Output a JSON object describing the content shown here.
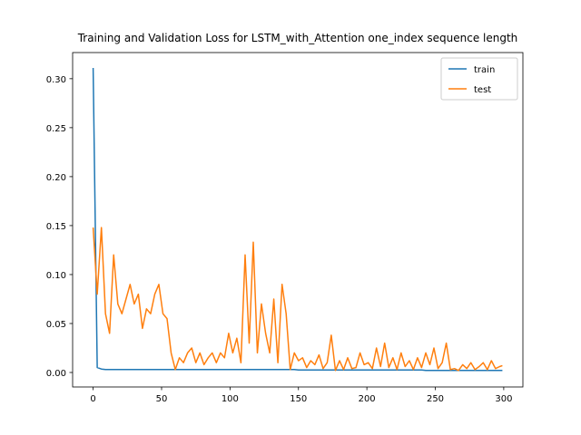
{
  "chart_data": {
    "type": "line",
    "title": "Training and Validation Loss for LSTM_with_Attention one_index sequence length",
    "x": [
      0,
      3,
      6,
      9,
      12,
      15,
      18,
      21,
      24,
      27,
      30,
      33,
      36,
      39,
      42,
      45,
      48,
      51,
      54,
      57,
      60,
      63,
      66,
      69,
      72,
      75,
      78,
      81,
      84,
      87,
      90,
      93,
      96,
      99,
      102,
      105,
      108,
      111,
      114,
      117,
      120,
      123,
      126,
      129,
      132,
      135,
      138,
      141,
      144,
      147,
      150,
      153,
      156,
      159,
      162,
      165,
      168,
      171,
      174,
      177,
      180,
      183,
      186,
      189,
      192,
      195,
      198,
      201,
      204,
      207,
      210,
      213,
      216,
      219,
      222,
      225,
      228,
      231,
      234,
      237,
      240,
      243,
      246,
      249,
      252,
      255,
      258,
      261,
      264,
      267,
      270,
      273,
      276,
      279,
      282,
      285,
      288,
      291,
      294,
      297,
      299
    ],
    "series": [
      {
        "name": "train",
        "color": "#1f77b4",
        "values": [
          0.311,
          0.005,
          0.0035,
          0.003,
          0.003,
          0.003,
          0.003,
          0.003,
          0.003,
          0.003,
          0.003,
          0.003,
          0.003,
          0.003,
          0.003,
          0.003,
          0.003,
          0.003,
          0.003,
          0.003,
          0.003,
          0.003,
          0.003,
          0.003,
          0.003,
          0.003,
          0.003,
          0.003,
          0.003,
          0.003,
          0.003,
          0.003,
          0.003,
          0.003,
          0.003,
          0.003,
          0.003,
          0.003,
          0.003,
          0.003,
          0.003,
          0.003,
          0.003,
          0.003,
          0.003,
          0.003,
          0.003,
          0.003,
          0.003,
          0.003,
          0.0025,
          0.0025,
          0.0025,
          0.0025,
          0.0025,
          0.0025,
          0.0025,
          0.0025,
          0.0025,
          0.0025,
          0.0025,
          0.0025,
          0.0025,
          0.0025,
          0.0025,
          0.0025,
          0.0025,
          0.0025,
          0.0025,
          0.0025,
          0.0025,
          0.0025,
          0.0025,
          0.0025,
          0.0025,
          0.0025,
          0.0025,
          0.0025,
          0.0025,
          0.0025,
          0.0025,
          0.002,
          0.002,
          0.002,
          0.002,
          0.002,
          0.002,
          0.002,
          0.002,
          0.002,
          0.002,
          0.002,
          0.002,
          0.002,
          0.002,
          0.002,
          0.002,
          0.002,
          0.002,
          0.002,
          0.002
        ]
      },
      {
        "name": "test",
        "color": "#ff7f0e",
        "values": [
          0.148,
          0.08,
          0.148,
          0.06,
          0.04,
          0.12,
          0.07,
          0.06,
          0.075,
          0.09,
          0.07,
          0.08,
          0.045,
          0.065,
          0.06,
          0.08,
          0.09,
          0.06,
          0.055,
          0.02,
          0.003,
          0.015,
          0.01,
          0.02,
          0.025,
          0.01,
          0.02,
          0.008,
          0.015,
          0.02,
          0.01,
          0.02,
          0.015,
          0.04,
          0.02,
          0.035,
          0.01,
          0.12,
          0.03,
          0.133,
          0.02,
          0.07,
          0.04,
          0.02,
          0.075,
          0.01,
          0.09,
          0.06,
          0.003,
          0.02,
          0.012,
          0.015,
          0.005,
          0.012,
          0.008,
          0.018,
          0.004,
          0.01,
          0.038,
          0.002,
          0.012,
          0.003,
          0.015,
          0.004,
          0.005,
          0.02,
          0.008,
          0.01,
          0.004,
          0.025,
          0.006,
          0.03,
          0.005,
          0.015,
          0.003,
          0.02,
          0.006,
          0.012,
          0.003,
          0.015,
          0.005,
          0.02,
          0.008,
          0.025,
          0.004,
          0.01,
          0.03,
          0.003,
          0.004,
          0.002,
          0.008,
          0.004,
          0.01,
          0.003,
          0.006,
          0.01,
          0.003,
          0.012,
          0.004,
          0.006,
          0.007
        ]
      }
    ],
    "xlim": [
      -15,
      314
    ],
    "ylim": [
      -0.0148,
      0.3267
    ],
    "xticks": [
      0,
      50,
      100,
      150,
      200,
      250,
      300
    ],
    "yticks": [
      {
        "value": 0,
        "label": "0.00"
      },
      {
        "value": 0.05,
        "label": "0.05"
      },
      {
        "value": 0.1,
        "label": "0.10"
      },
      {
        "value": 0.15,
        "label": "0.15"
      },
      {
        "value": 0.2,
        "label": "0.20"
      },
      {
        "value": 0.25,
        "label": "0.25"
      },
      {
        "value": 0.3,
        "label": "0.30"
      }
    ],
    "legend": "upper right"
  }
}
